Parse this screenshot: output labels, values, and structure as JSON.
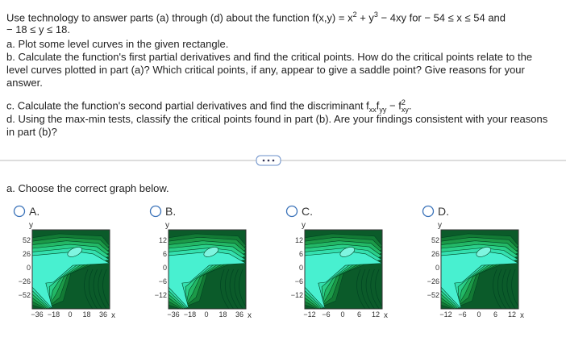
{
  "question": {
    "intro": {
      "line1_a": "Use technology to answer parts (a) through (d) about the function f(x,y) = x",
      "exp_x": "2",
      "line1_b": " + y",
      "exp_y": "3",
      "line1_c": " − 4xy for  − 54 ≤ x ≤ 54 and",
      "line2": " − 18 ≤ y ≤ 18."
    },
    "part_a": "a. Plot some level curves in the given rectangle.",
    "part_b": [
      "b. Calculate the function's first partial derivatives and find the critical points. How do the critical points relate to the",
      "level curves plotted in part (a)? Which critical points, if any, appear to give a saddle point? Give reasons for your",
      "answer."
    ],
    "part_c": {
      "text": "c. Calculate the function's second partial derivatives and find the discriminant f",
      "sub1": "xx",
      "f2": "f",
      "sub2": "yy",
      "minus": " − f",
      "sup": "2",
      "sub3": "xy",
      "end": "."
    },
    "part_d": [
      "d. Using the max-min tests, classify the critical points found in part (b). Are your findings consistent with your reasons",
      "in part (b)?"
    ]
  },
  "prompt": "a. Choose the correct graph below.",
  "options": [
    {
      "label": "A.",
      "y_axis": "y",
      "x_axis": "x",
      "yticks": [
        "52",
        "26",
        "0",
        "−26",
        "−52"
      ],
      "xticks": [
        "−36",
        "−18",
        "0",
        "18",
        "36"
      ]
    },
    {
      "label": "B.",
      "y_axis": "y",
      "x_axis": "x",
      "yticks": [
        "12",
        "6",
        "0",
        "−6",
        "−12"
      ],
      "xticks": [
        "−36",
        "−18",
        "0",
        "18",
        "36"
      ]
    },
    {
      "label": "C.",
      "y_axis": "y",
      "x_axis": "x",
      "yticks": [
        "12",
        "6",
        "0",
        "−6",
        "−12"
      ],
      "xticks": [
        "−12",
        "−6",
        "0",
        "6",
        "12"
      ]
    },
    {
      "label": "D.",
      "y_axis": "y",
      "x_axis": "x",
      "yticks": [
        "52",
        "26",
        "0",
        "−26",
        "−52"
      ],
      "xticks": [
        "−12",
        "−6",
        "0",
        "6",
        "12"
      ]
    }
  ]
}
